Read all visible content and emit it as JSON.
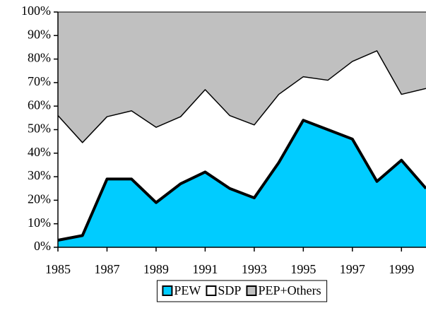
{
  "chart_data": {
    "type": "stacked-area",
    "x": [
      1985,
      1986,
      1987,
      1988,
      1989,
      1990,
      1991,
      1992,
      1993,
      1994,
      1995,
      1996,
      1997,
      1998,
      1999,
      2000
    ],
    "series": [
      {
        "name": "PEW",
        "color": "#00ccff",
        "values": [
          3,
          5,
          29,
          29,
          19,
          27,
          32,
          25,
          21,
          36,
          54,
          50,
          46,
          28,
          37,
          25
        ]
      },
      {
        "name": "SDP",
        "color": "#ffffff",
        "values": [
          53,
          39.5,
          26.5,
          29,
          32,
          28.5,
          35,
          31,
          31,
          29,
          18.5,
          21,
          33,
          55.5,
          28,
          42.5
        ]
      },
      {
        "name": "PEP+Others",
        "color": "#c0c0c0",
        "values": [
          44,
          55.5,
          44.5,
          42,
          49,
          44.5,
          33,
          44,
          48,
          35,
          27.5,
          29,
          21,
          16.5,
          35,
          32.5
        ]
      }
    ],
    "xlim": [
      1985,
      2000
    ],
    "xticks": [
      1985,
      1987,
      1989,
      1991,
      1993,
      1995,
      1997,
      1999
    ],
    "ylim": [
      0,
      100
    ],
    "yticks": [
      {
        "value": 0,
        "label": "0%"
      },
      {
        "value": 10,
        "label": "10%"
      },
      {
        "value": 20,
        "label": "20%"
      },
      {
        "value": 30,
        "label": "30%"
      },
      {
        "value": 40,
        "label": "40%"
      },
      {
        "value": 50,
        "label": "50%"
      },
      {
        "value": 60,
        "label": "60%"
      },
      {
        "value": 70,
        "label": "70%"
      },
      {
        "value": 80,
        "label": "80%"
      },
      {
        "value": 90,
        "label": "90%"
      },
      {
        "value": 100,
        "label": "100%"
      }
    ],
    "grid": false,
    "legend": "bottom"
  }
}
